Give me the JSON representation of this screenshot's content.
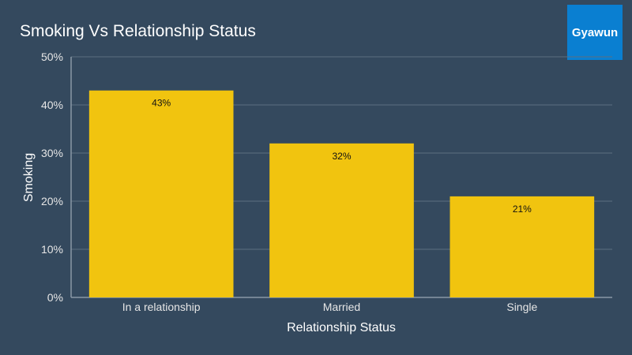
{
  "chart_data": {
    "type": "bar",
    "title": "Smoking Vs Relationship Status",
    "categories": [
      "In a relationship",
      "Married",
      "Single"
    ],
    "values": [
      43,
      32,
      21
    ],
    "value_labels": [
      "43%",
      "32%",
      "21%"
    ],
    "xlabel": "Relationship Status",
    "ylabel": "Smoking",
    "ylim": [
      0,
      50
    ],
    "yticks": [
      "0%",
      "10%",
      "20%",
      "30%",
      "40%",
      "50%"
    ],
    "grid": true,
    "bar_color": "#f1c40f"
  },
  "brand": {
    "logo_text": "Gyawun",
    "color": "#0a7fd1"
  },
  "colors": {
    "background": "#34495e",
    "gridline": "#5c6e80"
  }
}
